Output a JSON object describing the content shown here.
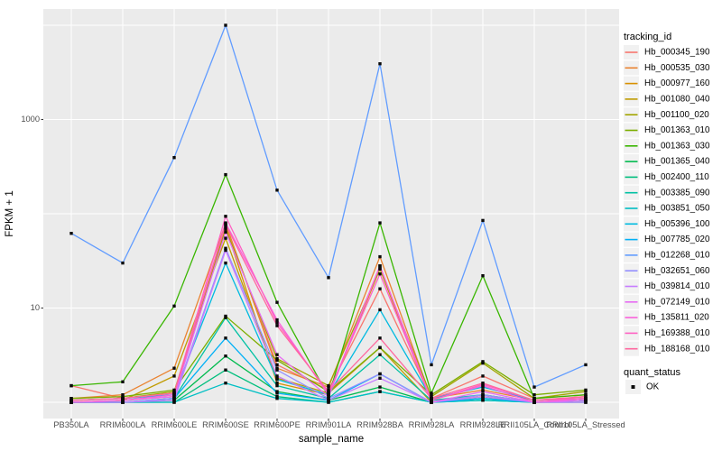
{
  "chart_data": {
    "type": "line",
    "title": "",
    "xlabel": "sample_name",
    "ylabel": "FPKM + 1",
    "yscale": "log10",
    "ylim": [
      0.8,
      12000
    ],
    "grid": true,
    "legend_position": "right",
    "point_marker": "black-square",
    "ytick_labels": [
      "1000",
      "10"
    ],
    "ytick_values": [
      1000,
      10
    ],
    "y_gridline_values": [
      1,
      10,
      100,
      1000,
      10000
    ],
    "categories": [
      "PB350LA",
      "RRIM600LA",
      "RRIM600LE",
      "RRIM600SE",
      "RRIM600PE",
      "RRIM901LA",
      "RRIM928BA",
      "RRIM928LA",
      "RRIM928LE",
      "RRII105LA_Control",
      "RRII105LA_Stressed"
    ],
    "legend_title": "tracking_id",
    "status_legend": {
      "title": "quant_status",
      "label": "OK"
    },
    "series": [
      {
        "name": "Hb_000345_190",
        "color": "#F8766D",
        "values": [
          1.5,
          1.1,
          1.25,
          76,
          2.5,
          1.35,
          16,
          1.1,
          1.9,
          1.1,
          1.2
        ]
      },
      {
        "name": "Hb_000535_030",
        "color": "#EA8331",
        "values": [
          1.1,
          1.2,
          2.3,
          79,
          2.3,
          1.45,
          35,
          1.1,
          1.35,
          1.05,
          1.15
        ]
      },
      {
        "name": "Hb_000977_160",
        "color": "#D89000",
        "values": [
          1.0,
          1.05,
          1.15,
          72,
          1.6,
          1.2,
          26,
          1.0,
          1.2,
          1.0,
          1.1
        ]
      },
      {
        "name": "Hb_001080_040",
        "color": "#C09B00",
        "values": [
          1.0,
          1.05,
          1.9,
          55,
          1.8,
          1.25,
          3.8,
          1.0,
          1.15,
          1.0,
          1.05
        ]
      },
      {
        "name": "Hb_001100_020",
        "color": "#A3A500",
        "values": [
          1.05,
          1.1,
          1.3,
          69,
          2.9,
          1.5,
          26,
          1.15,
          2.6,
          1.1,
          1.3
        ]
      },
      {
        "name": "Hb_001363_010",
        "color": "#7CAE00",
        "values": [
          1.1,
          1.15,
          1.35,
          8.2,
          2.8,
          1.3,
          3.8,
          1.2,
          2.7,
          1.2,
          1.35
        ]
      },
      {
        "name": "Hb_001363_030",
        "color": "#39B600",
        "values": [
          1.5,
          1.65,
          10.5,
          260,
          11.5,
          1.15,
          80,
          1.25,
          22,
          1.1,
          1.2
        ]
      },
      {
        "name": "Hb_001365_040",
        "color": "#00BB4E",
        "values": [
          1.0,
          1.0,
          1.05,
          3.1,
          1.3,
          1.05,
          1.45,
          1.0,
          1.1,
          1.0,
          1.05
        ]
      },
      {
        "name": "Hb_002400_110",
        "color": "#00BF7D",
        "values": [
          1.0,
          1.0,
          1.0,
          2.2,
          1.15,
          1.0,
          1.3,
          1.0,
          1.05,
          1.0,
          1.0
        ]
      },
      {
        "name": "Hb_003385_090",
        "color": "#00C1A3",
        "values": [
          1.0,
          1.0,
          1.1,
          7.9,
          1.5,
          1.1,
          3.2,
          1.05,
          1.2,
          1.0,
          1.05
        ]
      },
      {
        "name": "Hb_003851_050",
        "color": "#00BFC4",
        "values": [
          1.0,
          1.0,
          1.0,
          1.6,
          1.1,
          1.0,
          1.3,
          1.0,
          1.05,
          1.0,
          1.0
        ]
      },
      {
        "name": "Hb_005396_100",
        "color": "#00BAE0",
        "values": [
          1.05,
          1.1,
          1.2,
          30,
          1.75,
          1.2,
          9.6,
          1.1,
          1.45,
          1.05,
          1.1
        ]
      },
      {
        "name": "Hb_007785_020",
        "color": "#00B0F6",
        "values": [
          1.0,
          1.0,
          1.1,
          4.8,
          1.25,
          1.05,
          2.0,
          1.0,
          1.1,
          1.0,
          1.05
        ]
      },
      {
        "name": "Hb_012268_010",
        "color": "#619CFF",
        "values": [
          62,
          30,
          395,
          10000,
          178,
          21,
          3900,
          2.5,
          85,
          1.45,
          2.5
        ]
      },
      {
        "name": "Hb_032651_060",
        "color": "#9590FF",
        "values": [
          1.0,
          1.0,
          1.1,
          43,
          2.2,
          1.1,
          2.0,
          1.0,
          1.2,
          1.0,
          1.05
        ]
      },
      {
        "name": "Hb_039814_010",
        "color": "#C77CFF",
        "values": [
          1.0,
          1.0,
          1.05,
          41,
          1.9,
          1.05,
          1.8,
          1.0,
          1.15,
          1.0,
          1.0
        ]
      },
      {
        "name": "Hb_072149_010",
        "color": "#E76BF3",
        "values": [
          1.0,
          1.05,
          1.15,
          64,
          3.2,
          1.15,
          28,
          1.0,
          1.3,
          1.0,
          1.05
        ]
      },
      {
        "name": "Hb_135811_020",
        "color": "#FA62DB",
        "values": [
          1.0,
          1.05,
          1.2,
          80,
          7.5,
          1.2,
          28,
          1.05,
          1.5,
          1.0,
          1.1
        ]
      },
      {
        "name": "Hb_169388_010",
        "color": "#FF61C3",
        "values": [
          1.05,
          1.1,
          1.25,
          94,
          7.0,
          1.25,
          23,
          1.05,
          1.55,
          1.05,
          1.1
        ]
      },
      {
        "name": "Hb_188168_010",
        "color": "#FF689F",
        "values": [
          1.05,
          1.1,
          1.25,
          77,
          6.5,
          1.3,
          4.8,
          1.1,
          1.6,
          1.05,
          1.15
        ]
      }
    ],
    "colors": {
      "panel_background": "#EBEBEB",
      "gridline": "#FFFFFF",
      "point": "#0A0A0A",
      "tick": "#333333",
      "legend_key_background": "#F1F1F1"
    }
  }
}
